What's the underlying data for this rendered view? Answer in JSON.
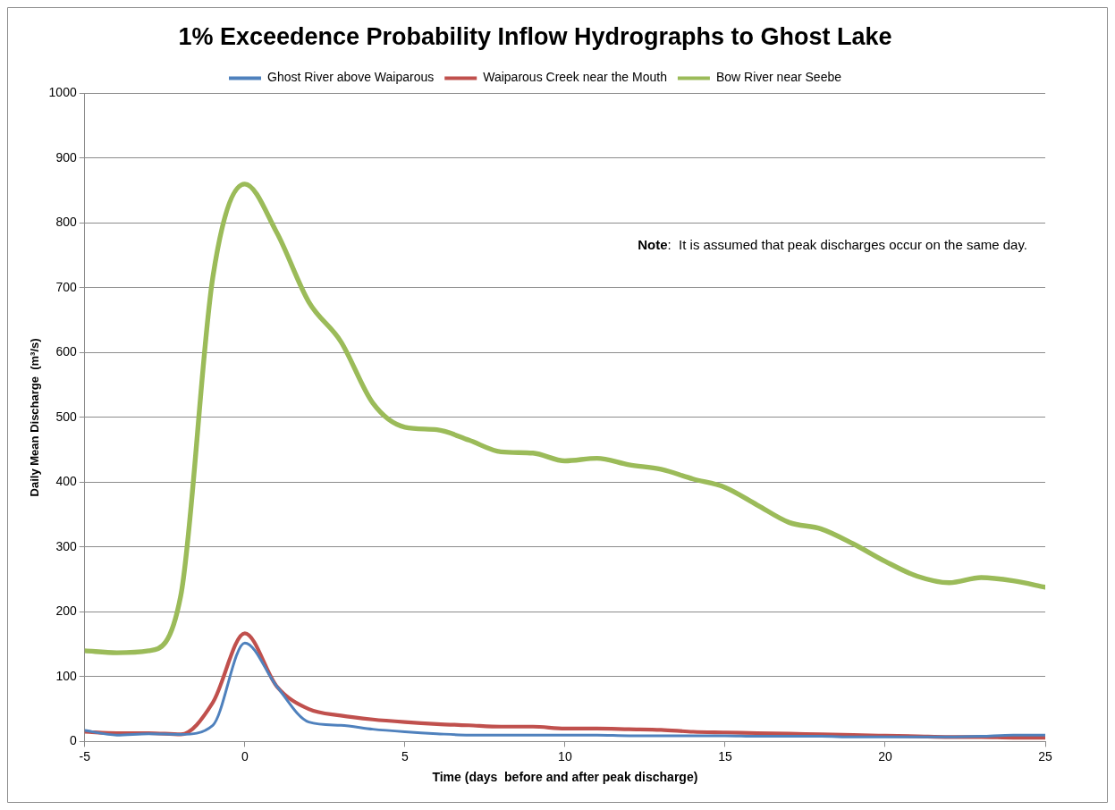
{
  "chart_data": {
    "type": "line",
    "title": "1% Exceedence Probability Inflow Hydrographs to Ghost Lake",
    "xlabel": "Time (days  before and after peak discharge)",
    "ylabel": "Daily Mean Discharge  (m³/s)",
    "x": [
      -5,
      -4,
      -3,
      -2,
      -1,
      0,
      1,
      2,
      3,
      4,
      5,
      6,
      7,
      8,
      9,
      10,
      11,
      12,
      13,
      14,
      15,
      16,
      17,
      18,
      19,
      20,
      21,
      22,
      23,
      24,
      25
    ],
    "series": [
      {
        "name": "Ghost River above Waiparous",
        "color": "#4f81bd",
        "values": [
          17,
          10,
          12,
          11,
          25,
          152,
          85,
          30,
          25,
          19,
          15,
          12,
          10,
          10,
          10,
          10,
          10,
          9,
          9,
          9,
          9,
          8,
          8,
          8,
          7,
          7,
          7,
          7,
          8,
          10,
          10
        ]
      },
      {
        "name": "Waiparous Creek near the Mouth",
        "color": "#c0504d",
        "values": [
          15,
          13,
          13,
          11,
          60,
          167,
          85,
          50,
          40,
          34,
          30,
          27,
          25,
          23,
          23,
          20,
          20,
          19,
          18,
          15,
          14,
          13,
          12,
          11,
          10,
          9,
          8,
          7,
          7,
          6,
          6
        ]
      },
      {
        "name": "Bow River near Seebe",
        "color": "#9bbb59",
        "values": [
          140,
          137,
          140,
          225,
          716,
          860,
          785,
          678,
          617,
          522,
          485,
          481,
          465,
          447,
          445,
          433,
          437,
          427,
          420,
          405,
          392,
          365,
          338,
          328,
          305,
          278,
          255,
          245,
          253,
          248,
          238
        ]
      }
    ],
    "xlim": [
      -5,
      25
    ],
    "xticks": [
      -5,
      0,
      5,
      10,
      15,
      20,
      25
    ],
    "ylim": [
      0,
      1000
    ],
    "yticks": [
      0,
      100,
      200,
      300,
      400,
      500,
      600,
      700,
      800,
      900,
      1000
    ],
    "grid": "y",
    "legend": "top",
    "marker": "none",
    "line_style": "solid",
    "annotations": [
      "Note:  It is assumed that peak discharges occur on the same day."
    ]
  }
}
